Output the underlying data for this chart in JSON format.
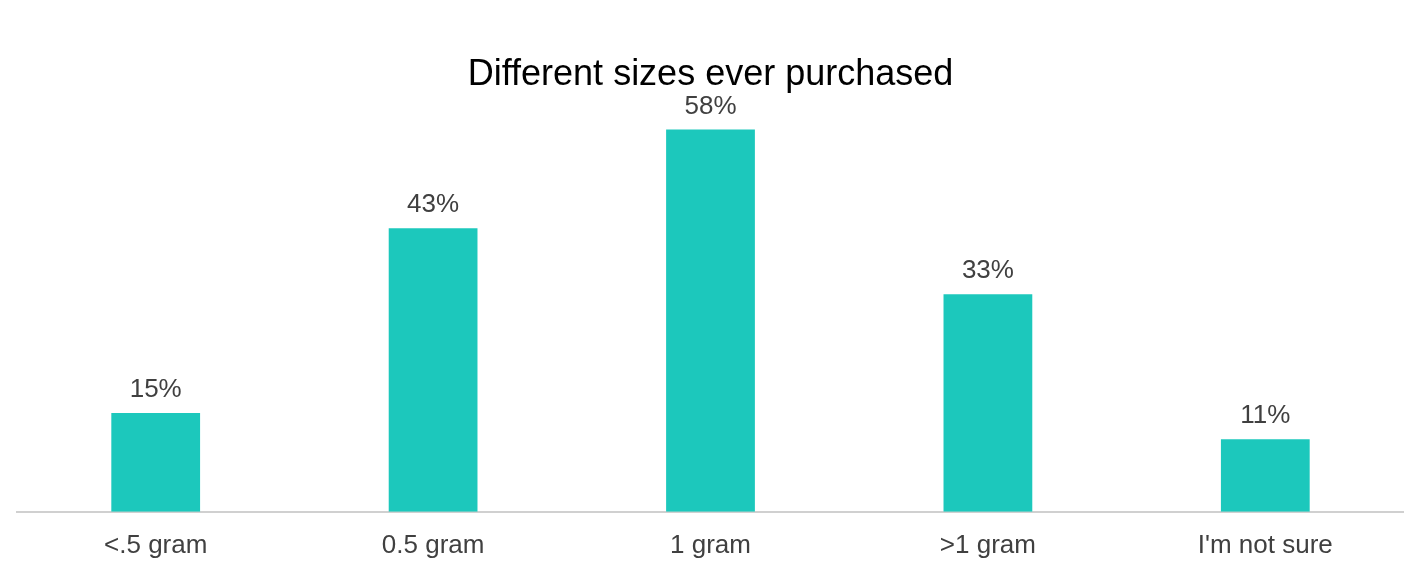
{
  "chart_data": {
    "type": "bar",
    "title": "Different sizes ever purchased",
    "categories": [
      "<.5 gram",
      "0.5 gram",
      "1 gram",
      ">1 gram",
      "I'm not sure"
    ],
    "values": [
      15,
      43,
      58,
      33,
      11
    ],
    "value_labels": [
      "15%",
      "43%",
      "58%",
      "33%",
      "11%"
    ],
    "color": "#1cc8bc"
  }
}
